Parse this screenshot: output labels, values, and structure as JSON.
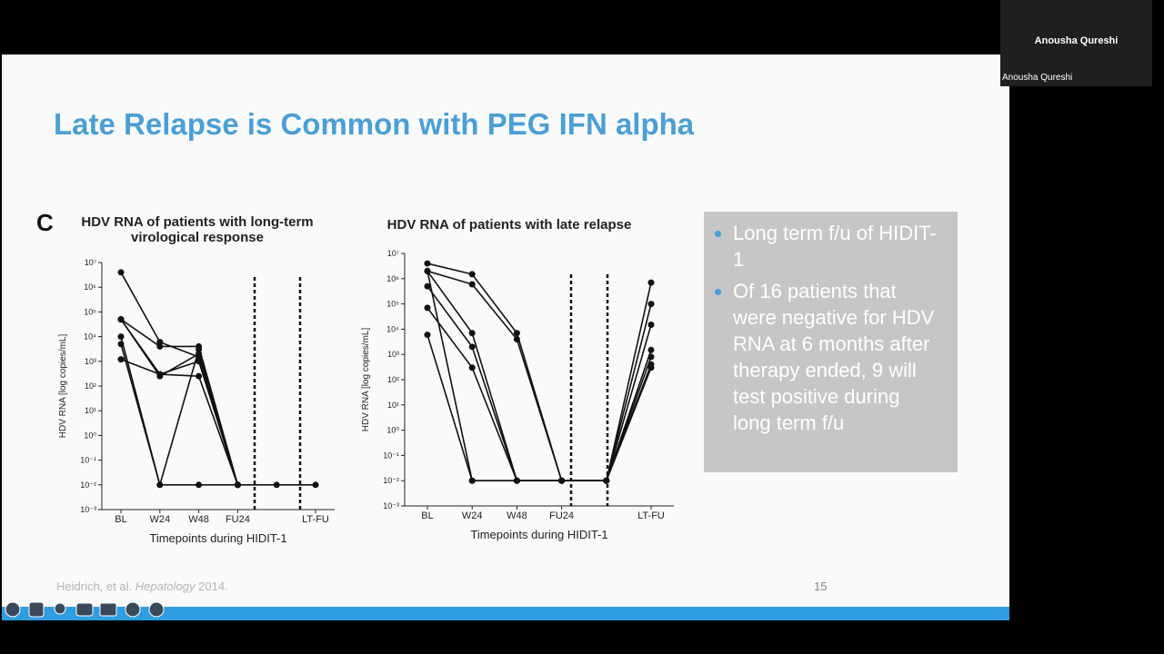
{
  "meeting": {
    "participant_name": "Anousha Qureshi",
    "participant_label": "Anousha Qureshi"
  },
  "slide": {
    "title": "Late Relapse is Common with PEG IFN alpha",
    "panel_letter": "C",
    "bullets": [
      "Long term f/u of HIDIT-1",
      "Of 16 patients that were negative for HDV RNA at 6 months after therapy ended, 9 will test positive during long term f/u"
    ],
    "citation": {
      "authors": "Heidrich, et al.",
      "journal": "Hepatology",
      "year": "2014."
    },
    "page_number": "15"
  },
  "chart_data": [
    {
      "type": "line",
      "title": "HDV RNA of patients with long-term virological response",
      "xlabel": "Timepoints during HIDIT-1",
      "ylabel": "HDV RNA [log copies/mL]",
      "color": "#111111",
      "log_scale": true,
      "categories": [
        "BL",
        "W24",
        "W48",
        "FU24",
        null,
        "LT-FU"
      ],
      "ylim": [
        0.001,
        10000000
      ],
      "yticks": [
        {
          "value": 0.001,
          "label": "10⁻³"
        },
        {
          "value": 0.01,
          "label": "10⁻²"
        },
        {
          "value": 0.1,
          "label": "10⁻¹"
        },
        {
          "value": 1,
          "label": "10⁰"
        },
        {
          "value": 10,
          "label": "10¹"
        },
        {
          "value": 100,
          "label": "10²"
        },
        {
          "value": 1000,
          "label": "10³"
        },
        {
          "value": 10000,
          "label": "10⁴"
        },
        {
          "value": 100000,
          "label": "10⁵"
        },
        {
          "value": 1000000,
          "label": "10⁶"
        },
        {
          "value": 10000000,
          "label": "10⁷"
        }
      ],
      "series": [
        {
          "values": [
            4000000,
            6000,
            1500,
            0.01,
            null,
            null
          ]
        },
        {
          "values": [
            50000,
            4000,
            4000,
            0.01,
            null,
            null
          ]
        },
        {
          "values": [
            50000,
            300,
            1000,
            0.01,
            null,
            null
          ]
        },
        {
          "values": [
            10000,
            0.01,
            3000,
            0.01,
            null,
            null
          ]
        },
        {
          "values": [
            5000,
            0.01,
            0.01,
            0.01,
            0.01,
            0.01
          ]
        },
        {
          "values": [
            1200,
            300,
            250,
            0.01,
            null,
            null
          ]
        },
        {
          "values": [
            50000,
            250,
            2000,
            0.01,
            null,
            null
          ]
        }
      ]
    },
    {
      "type": "line",
      "title": "HDV RNA of patients with late relapse",
      "xlabel": "Timepoints during HIDIT-1",
      "ylabel": "HDV RNA [log copies/mL]",
      "color": "#111111",
      "log_scale": true,
      "categories": [
        "BL",
        "W24",
        "W48",
        "FU24",
        null,
        "LT-FU"
      ],
      "ylim": [
        0.001,
        10000000
      ],
      "yticks": [
        {
          "value": 0.001,
          "label": "10⁻³"
        },
        {
          "value": 0.01,
          "label": "10⁻²"
        },
        {
          "value": 0.1,
          "label": "10⁻¹"
        },
        {
          "value": 1,
          "label": "10⁰"
        },
        {
          "value": 10,
          "label": "10¹"
        },
        {
          "value": 100,
          "label": "10²"
        },
        {
          "value": 1000,
          "label": "10³"
        },
        {
          "value": 10000,
          "label": "10⁴"
        },
        {
          "value": 100000,
          "label": "10⁵"
        },
        {
          "value": 1000000,
          "label": "10⁶"
        },
        {
          "value": 10000000,
          "label": "10⁷"
        }
      ],
      "series": [
        {
          "values": [
            4000000,
            1500000,
            7000,
            0.01,
            0.01,
            700000
          ]
        },
        {
          "values": [
            2000000,
            600000,
            4000,
            0.01,
            0.01,
            100000
          ]
        },
        {
          "values": [
            2000000,
            7000,
            0.01,
            0.01,
            0.01,
            15000
          ]
        },
        {
          "values": [
            500000,
            2000,
            0.01,
            0.01,
            0.01,
            1500
          ]
        },
        {
          "values": [
            70000,
            300,
            0.01,
            0.01,
            0.01,
            800
          ]
        },
        {
          "values": [
            6000,
            0.01,
            0.01,
            0.01,
            0.01,
            300
          ]
        },
        {
          "values": [
            2000000,
            0.01,
            0.01,
            0.01,
            0.01,
            400
          ]
        }
      ]
    }
  ]
}
